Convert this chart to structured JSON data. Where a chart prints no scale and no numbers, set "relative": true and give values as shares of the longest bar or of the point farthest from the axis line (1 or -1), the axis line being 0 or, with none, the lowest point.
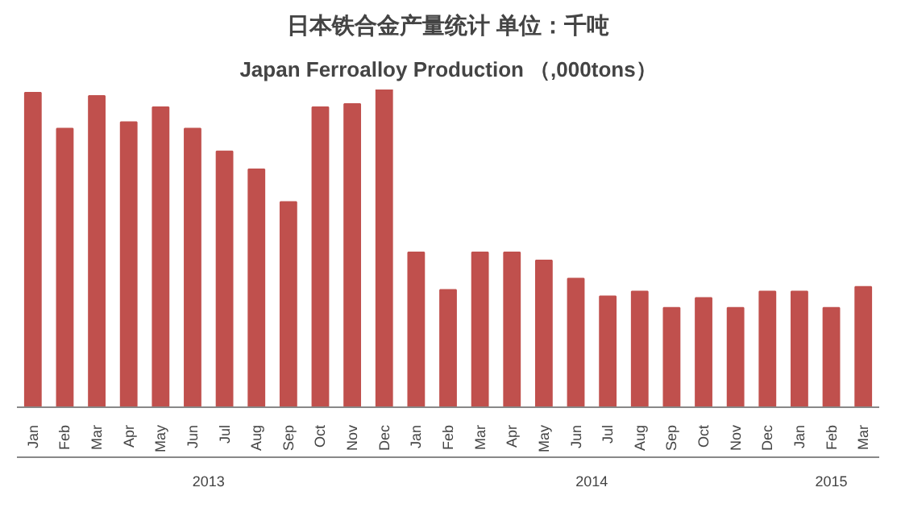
{
  "chart_data": {
    "type": "bar",
    "title": "日本铁合金产量统计 单位：千吨",
    "subtitle": "Japan Ferroalloy Production （,000tons）",
    "relative": true,
    "color": "#c0504d",
    "grid": false,
    "categories": [
      "Jan",
      "Feb",
      "Mar",
      "Apr",
      "May",
      "Jun",
      "Jul",
      "Aug",
      "Sep",
      "Oct",
      "Nov",
      "Dec",
      "Jan",
      "Feb",
      "Mar",
      "Apr",
      "May",
      "Jun",
      "Jul",
      "Aug",
      "Sep",
      "Oct",
      "Nov",
      "Dec",
      "Jan",
      "Feb",
      "Mar"
    ],
    "values": [
      0.99,
      0.877,
      0.98,
      0.897,
      0.944,
      0.877,
      0.805,
      0.749,
      0.646,
      0.944,
      0.954,
      1,
      0.487,
      0.369,
      0.487,
      0.487,
      0.462,
      0.405,
      0.349,
      0.364,
      0.313,
      0.344,
      0.313,
      0.364,
      0.364,
      0.313,
      0.379
    ],
    "annotations": [
      "2013",
      "2014",
      "2015"
    ]
  }
}
